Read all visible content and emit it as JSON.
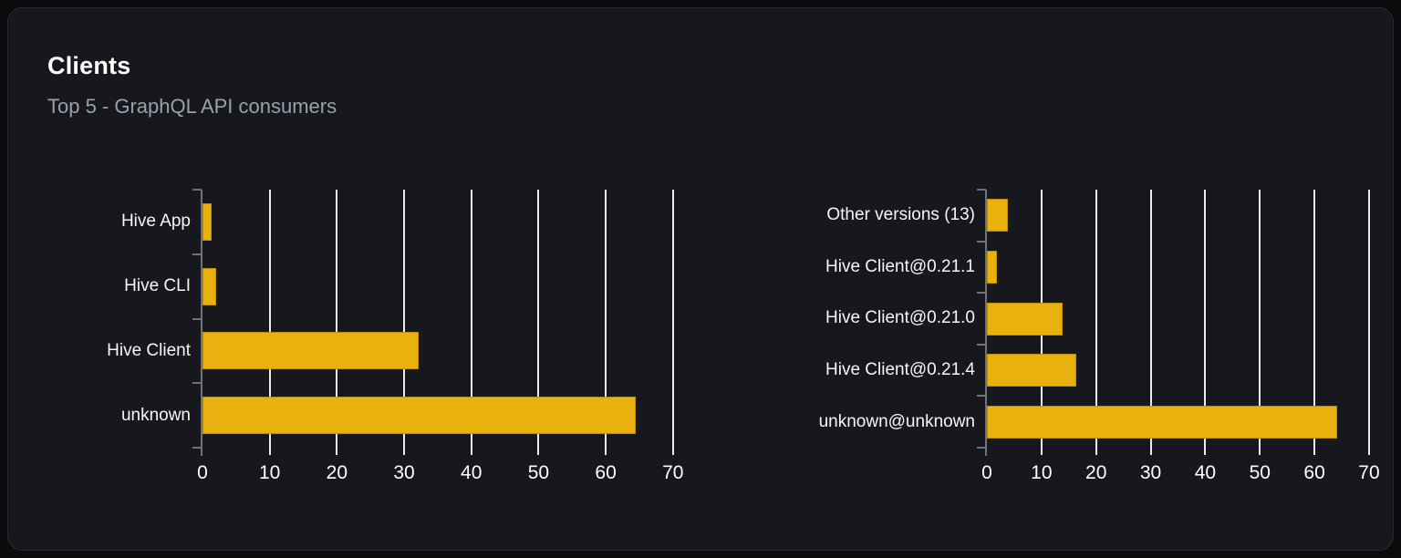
{
  "header": {
    "title": "Clients",
    "subtitle": "Top 5 - GraphQL API consumers"
  },
  "colors": {
    "page_background": "#0a0b0d",
    "card_background": "#16181d",
    "bar": "#e9b10d",
    "gridline": "#e8ebf2",
    "axis": "#6f7278",
    "title_text": "#ffffff",
    "subtitle_text": "#9aa1aa",
    "label_text": "#f5f6f7"
  },
  "chart_data": [
    {
      "type": "bar",
      "orientation": "horizontal",
      "name": "clients-by-name",
      "categories": [
        "Hive App",
        "Hive CLI",
        "Hive Client",
        "unknown"
      ],
      "values": [
        1.3,
        2,
        32.2,
        64.5
      ],
      "xlim": [
        0,
        70
      ],
      "x_ticks": [
        0,
        10,
        20,
        30,
        40,
        50,
        60,
        70
      ],
      "grid": true,
      "legend": "none",
      "bar_color": "#e9b10d"
    },
    {
      "type": "bar",
      "orientation": "horizontal",
      "name": "clients-by-version",
      "categories": [
        "Other versions (13)",
        "Hive Client@0.21.1",
        "Hive Client@0.21.0",
        "Hive Client@0.21.4",
        "unknown@unknown"
      ],
      "values": [
        3.9,
        1.9,
        13.8,
        16.4,
        64.1
      ],
      "xlim": [
        0,
        70
      ],
      "x_ticks": [
        0,
        10,
        20,
        30,
        40,
        50,
        60,
        70
      ],
      "grid": true,
      "legend": "none",
      "bar_color": "#e9b10d"
    }
  ]
}
